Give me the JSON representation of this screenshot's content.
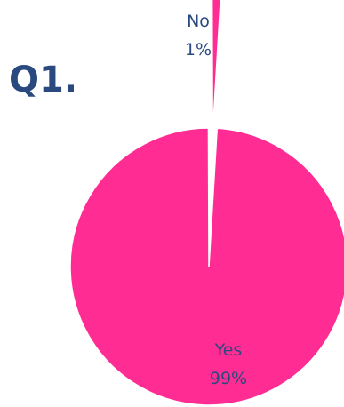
{
  "question": "Q1.",
  "colors": {
    "text": "#2a4a7f",
    "slice": "#ff2d93",
    "edge": "#ffffff"
  },
  "chart_data": {
    "type": "pie",
    "title": "",
    "slices": [
      {
        "name": "Yes",
        "value": 99,
        "value_label": "99%"
      },
      {
        "name": "No",
        "value": 1,
        "value_label": "1%"
      }
    ],
    "exploded": "No"
  }
}
